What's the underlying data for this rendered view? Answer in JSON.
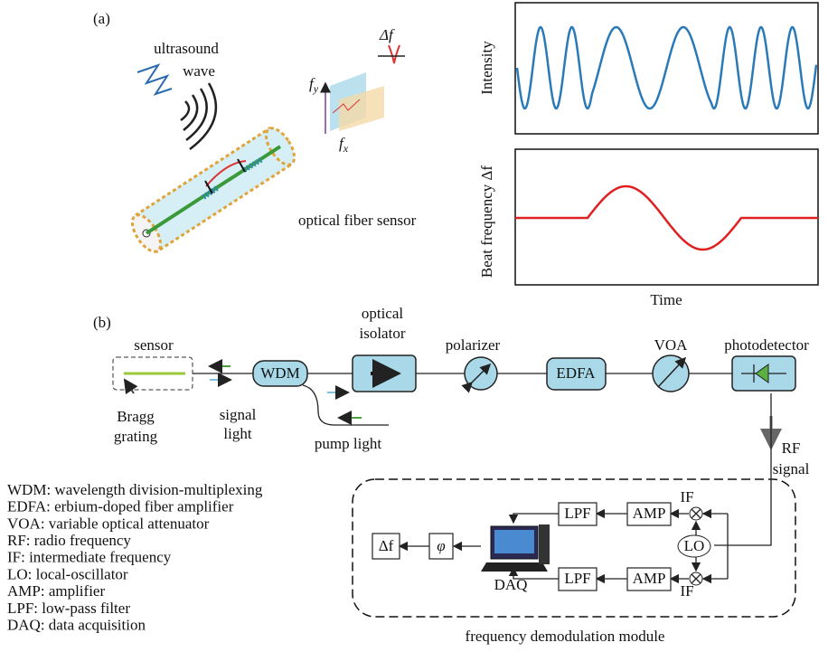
{
  "panel_a": {
    "label": "(a)",
    "source_label": [
      "ultrasound",
      "wave"
    ],
    "delta_f": "Δf",
    "fy": {
      "base": "f",
      "sub": "y"
    },
    "fx": {
      "base": "f",
      "sub": "x"
    },
    "sensor_label": "optical fiber sensor",
    "plot_top_ylabel": "Intensity",
    "plot_bottom_ylabel": "Beat frequency Δf",
    "xlabel": "Time"
  },
  "panel_b": {
    "label": "(b)",
    "sensor": "sensor",
    "bragg": [
      "Bragg",
      "grating"
    ],
    "signal_light": [
      "signal",
      "light"
    ],
    "wdm": "WDM",
    "isolator": [
      "optical",
      "isolator"
    ],
    "polarizer": "polarizer",
    "edfa": "EDFA",
    "voa": "VOA",
    "photodetector": "photodetector",
    "pump_light": "pump light",
    "rf_signal": [
      "RF",
      "signal"
    ],
    "lpf": "LPF",
    "amp": "AMP",
    "if": "IF",
    "lo": "LO",
    "phi": "φ",
    "delta_f": "Δf",
    "daq": "DAQ",
    "module": "frequency demodulation module",
    "legend": [
      "WDM: wavelength division-multiplexing",
      "EDFA: erbium-doped fiber amplifier",
      "VOA: variable optical attenuator",
      "RF: radio frequency",
      "IF: intermediate frequency",
      "LO: local-oscillator",
      "AMP: amplifier",
      "LPF: low-pass filter",
      "DAQ: data acquisition"
    ]
  }
}
